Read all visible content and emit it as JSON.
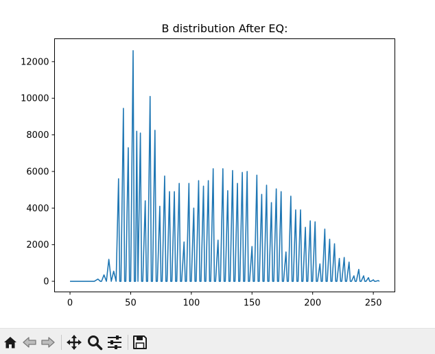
{
  "window": {
    "toolbar": {
      "buttons": [
        {
          "name": "home",
          "icon": "home-icon",
          "enabled": true
        },
        {
          "name": "back",
          "icon": "back-arrow-icon",
          "enabled": false
        },
        {
          "name": "forward",
          "icon": "forward-arrow-icon",
          "enabled": false
        },
        {
          "name": "pan",
          "icon": "move-icon",
          "enabled": true
        },
        {
          "name": "zoom",
          "icon": "magnifier-icon",
          "enabled": true
        },
        {
          "name": "configure-subplots",
          "icon": "sliders-icon",
          "enabled": true
        },
        {
          "name": "save",
          "icon": "floppy-disk-icon",
          "enabled": true
        }
      ]
    }
  },
  "chart_data": {
    "type": "line",
    "title": "B distribution After EQ:",
    "xlabel": "",
    "ylabel": "",
    "xlim": [
      -12.75,
      267.75
    ],
    "ylim": [
      -580,
      13250
    ],
    "xticks": [
      0,
      50,
      100,
      150,
      200,
      250
    ],
    "yticks": [
      0,
      2000,
      4000,
      6000,
      8000,
      10000,
      12000
    ],
    "grid": false,
    "line_color": "#1f77b4",
    "x": [
      0,
      20,
      23,
      25,
      26,
      28,
      30,
      32,
      34,
      36,
      38,
      40,
      41,
      42,
      44,
      45,
      46,
      48,
      49,
      50,
      52,
      53,
      54,
      55,
      56,
      58,
      59,
      60,
      62,
      63,
      64,
      66,
      67,
      68,
      70,
      71,
      72,
      74,
      75,
      76,
      78,
      79,
      80,
      82,
      83,
      84,
      86,
      87,
      88,
      90,
      91,
      92,
      94,
      95,
      96,
      98,
      99,
      100,
      102,
      103,
      104,
      106,
      107,
      108,
      110,
      111,
      112,
      114,
      115,
      116,
      118,
      119,
      120,
      122,
      123,
      124,
      126,
      127,
      128,
      130,
      131,
      132,
      134,
      135,
      136,
      138,
      139,
      140,
      142,
      143,
      144,
      146,
      147,
      148,
      150,
      151,
      152,
      154,
      155,
      156,
      158,
      159,
      160,
      162,
      163,
      164,
      166,
      167,
      168,
      170,
      171,
      172,
      174,
      175,
      176,
      178,
      179,
      180,
      182,
      183,
      184,
      186,
      187,
      188,
      190,
      191,
      192,
      194,
      195,
      196,
      198,
      199,
      200,
      202,
      203,
      204,
      206,
      207,
      208,
      210,
      211,
      212,
      214,
      215,
      216,
      218,
      219,
      220,
      222,
      223,
      224,
      226,
      227,
      228,
      230,
      231,
      232,
      234,
      235,
      236,
      238,
      239,
      240,
      242,
      243,
      244,
      246,
      247,
      248,
      250,
      251,
      252,
      254,
      255
    ],
    "values": [
      0,
      0,
      120,
      0,
      0,
      350,
      0,
      1200,
      0,
      550,
      0,
      5600,
      0,
      0,
      9450,
      0,
      0,
      7300,
      0,
      0,
      12600,
      0,
      0,
      8200,
      0,
      8100,
      0,
      0,
      4400,
      0,
      0,
      10100,
      0,
      0,
      8250,
      0,
      0,
      4100,
      0,
      0,
      5750,
      0,
      0,
      4900,
      0,
      0,
      4900,
      0,
      0,
      5350,
      0,
      0,
      2150,
      0,
      0,
      5350,
      0,
      0,
      4000,
      0,
      0,
      5500,
      0,
      0,
      5200,
      0,
      0,
      5500,
      0,
      0,
      6150,
      0,
      0,
      2250,
      0,
      0,
      6150,
      0,
      0,
      4950,
      0,
      0,
      6050,
      0,
      0,
      5350,
      0,
      0,
      5950,
      0,
      0,
      6000,
      0,
      0,
      1900,
      0,
      0,
      5800,
      0,
      0,
      4750,
      0,
      0,
      5250,
      0,
      0,
      4300,
      0,
      0,
      5050,
      0,
      0,
      4900,
      0,
      0,
      1600,
      0,
      0,
      4650,
      0,
      0,
      3900,
      0,
      0,
      3900,
      0,
      0,
      2950,
      0,
      0,
      3300,
      0,
      0,
      3250,
      0,
      0,
      950,
      0,
      0,
      2850,
      0,
      0,
      2300,
      0,
      0,
      2050,
      0,
      0,
      1250,
      0,
      0,
      1300,
      0,
      0,
      1050,
      0,
      0,
      300,
      0,
      0,
      650,
      0,
      0,
      300,
      0,
      0,
      200,
      0,
      0,
      80,
      0,
      0,
      40,
      0
    ]
  }
}
